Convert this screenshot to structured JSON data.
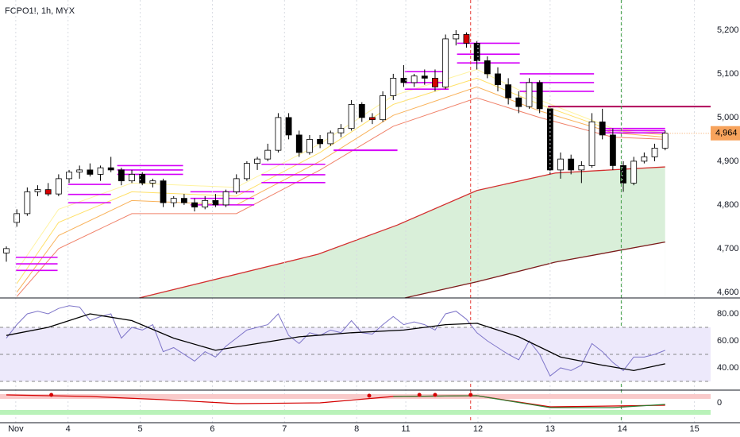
{
  "header": {
    "title": "FCPO1!, 1h, MYX"
  },
  "chart_data": {
    "type": "candlestick",
    "candles": [
      [
        4690,
        4705,
        4670,
        4700
      ],
      [
        4760,
        4790,
        4750,
        4780
      ],
      [
        4780,
        4840,
        4775,
        4830
      ],
      [
        4830,
        4845,
        4820,
        4835
      ],
      [
        4835,
        4850,
        4820,
        4825
      ],
      [
        4825,
        4870,
        4820,
        4860
      ],
      [
        4860,
        4880,
        4850,
        4875
      ],
      [
        4875,
        4890,
        4860,
        4880
      ],
      [
        4880,
        4895,
        4865,
        4870
      ],
      [
        4870,
        4890,
        4855,
        4885
      ],
      [
        4885,
        4910,
        4875,
        4880
      ],
      [
        4880,
        4885,
        4845,
        4855
      ],
      [
        4855,
        4880,
        4850,
        4870
      ],
      [
        4870,
        4875,
        4845,
        4850
      ],
      [
        4850,
        4860,
        4840,
        4855
      ],
      [
        4855,
        4860,
        4795,
        4805
      ],
      [
        4805,
        4820,
        4795,
        4815
      ],
      [
        4815,
        4825,
        4800,
        4805
      ],
      [
        4805,
        4815,
        4785,
        4795
      ],
      [
        4795,
        4820,
        4790,
        4810
      ],
      [
        4810,
        4825,
        4795,
        4800
      ],
      [
        4800,
        4835,
        4795,
        4830
      ],
      [
        4830,
        4870,
        4825,
        4860
      ],
      [
        4860,
        4900,
        4855,
        4895
      ],
      [
        4895,
        4910,
        4880,
        4905
      ],
      [
        4905,
        4940,
        4900,
        4925
      ],
      [
        4925,
        5010,
        4920,
        5000
      ],
      [
        5000,
        5010,
        4950,
        4960
      ],
      [
        4960,
        4970,
        4910,
        4920
      ],
      [
        4920,
        4960,
        4915,
        4950
      ],
      [
        4950,
        4960,
        4930,
        4940
      ],
      [
        4940,
        4970,
        4935,
        4965
      ],
      [
        4965,
        4985,
        4955,
        4975
      ],
      [
        4975,
        5040,
        4970,
        5030
      ],
      [
        5030,
        5035,
        4990,
        5000
      ],
      [
        5000,
        5010,
        4985,
        4995
      ],
      [
        4995,
        5060,
        4990,
        5050
      ],
      [
        5050,
        5100,
        5040,
        5090
      ],
      [
        5090,
        5120,
        5070,
        5080
      ],
      [
        5080,
        5100,
        5070,
        5095
      ],
      [
        5095,
        5110,
        5075,
        5090
      ],
      [
        5090,
        5110,
        5060,
        5070
      ],
      [
        5070,
        5190,
        5065,
        5180
      ],
      [
        5180,
        5200,
        5165,
        5190
      ],
      [
        5190,
        5195,
        5160,
        5170
      ],
      [
        5170,
        5175,
        5110,
        5130
      ],
      [
        5130,
        5140,
        5090,
        5100
      ],
      [
        5100,
        5115,
        5060,
        5075
      ],
      [
        5075,
        5090,
        5030,
        5045
      ],
      [
        5045,
        5060,
        5010,
        5025
      ],
      [
        5025,
        5090,
        5020,
        5080
      ],
      [
        5080,
        5085,
        5010,
        5020
      ],
      [
        5020,
        5025,
        4870,
        4880
      ],
      [
        4880,
        4920,
        4860,
        4905
      ],
      [
        4905,
        4915,
        4870,
        4880
      ],
      [
        4880,
        4900,
        4850,
        4890
      ],
      [
        4890,
        5010,
        4885,
        4990
      ],
      [
        4990,
        5020,
        4950,
        4960
      ],
      [
        4960,
        4975,
        4880,
        4890
      ],
      [
        4890,
        4900,
        4830,
        4850
      ],
      [
        4850,
        4910,
        4845,
        4900
      ],
      [
        4900,
        4920,
        4895,
        4910
      ],
      [
        4910,
        4940,
        4900,
        4930
      ],
      [
        4930,
        4970,
        4925,
        4964
      ]
    ],
    "up_color": "#ffffff",
    "down_color": "#000000",
    "signal_color": "#d50000",
    "signal_candles": [
      4,
      35,
      41,
      44
    ],
    "xticks": [
      {
        "value": 0.9,
        "label": "Nov"
      },
      {
        "value": 5.9,
        "label": "4"
      },
      {
        "value": 12.8,
        "label": "5"
      },
      {
        "value": 19.7,
        "label": "6"
      },
      {
        "value": 26.6,
        "label": "7"
      },
      {
        "value": 33.5,
        "label": "8"
      },
      {
        "value": 38.2,
        "label": "11"
      },
      {
        "value": 45.1,
        "label": "12"
      },
      {
        "value": 52.0,
        "label": "13"
      },
      {
        "value": 58.9,
        "label": "14"
      },
      {
        "value": 65.8,
        "label": "15"
      }
    ],
    "ylim": [
      4587,
      5269
    ],
    "yticks": [
      {
        "value": 5200,
        "label": "5,200"
      },
      {
        "value": 5100,
        "label": "5,100"
      },
      {
        "value": 5000,
        "label": "5,000"
      },
      {
        "value": 4900,
        "label": "4,900"
      },
      {
        "value": 4800,
        "label": "4,800"
      },
      {
        "value": 4700,
        "label": "4,700"
      },
      {
        "value": 4600,
        "label": "4,600"
      }
    ],
    "last_price": {
      "value": 4964,
      "label": "4,964",
      "color": "#f7a35c"
    },
    "ribbon": {
      "x": [
        1,
        5,
        12,
        22,
        30,
        37,
        45,
        51,
        58,
        63
      ],
      "series": [
        {
          "color": "#fff3a0",
          "values": [
            4650,
            4790,
            4850,
            4840,
            4940,
            5050,
            5110,
            5040,
            4975,
            4965
          ]
        },
        {
          "color": "#ffe066",
          "values": [
            4620,
            4760,
            4830,
            4820,
            4920,
            5030,
            5090,
            5030,
            4970,
            4960
          ]
        },
        {
          "color": "#f9b25a",
          "values": [
            4600,
            4730,
            4810,
            4800,
            4900,
            5005,
            5070,
            5015,
            4965,
            4955
          ]
        },
        {
          "color": "#f0826a",
          "values": [
            4590,
            4700,
            4780,
            4780,
            4880,
            4980,
            5045,
            5000,
            4955,
            4950
          ]
        }
      ]
    },
    "sma": [
      {
        "color": "#d32f2f",
        "fill": "#d9efd9",
        "x": [
          12.7,
          29.8,
          37.4,
          45,
          52.5,
          63
        ],
        "values": [
          4587,
          4687,
          4754,
          4833,
          4873,
          4887
        ]
      },
      {
        "color": "#7b1a1a",
        "fill": "#ffffff",
        "x": [
          38.1,
          45,
          52.5,
          63
        ],
        "values": [
          4587,
          4624,
          4669,
          4715
        ]
      }
    ],
    "levels": [
      {
        "start": 0.9,
        "end": 4.9,
        "values": [
          4680,
          4665,
          4650
        ],
        "color": "#d500f9"
      },
      {
        "start": 5.9,
        "end": 10,
        "values": [
          4847,
          4824,
          4805
        ],
        "color": "#d500f9"
      },
      {
        "start": 10.6,
        "end": 16.9,
        "values": [
          4890,
          4880,
          4870
        ],
        "color": "#d500f9"
      },
      {
        "start": 17.6,
        "end": 23.7,
        "values": [
          4830,
          4815,
          4800
        ],
        "color": "#d500f9"
      },
      {
        "start": 24.4,
        "end": 30.5,
        "values": [
          4893,
          4869,
          4851
        ],
        "color": "#d500f9"
      },
      {
        "start": 31.3,
        "end": 37.4,
        "values": [
          4925
        ],
        "color": "#d500f9"
      },
      {
        "start": 38.1,
        "end": 42.3,
        "values": [
          5105,
          5080,
          5065
        ],
        "color": "#d500f9"
      },
      {
        "start": 43.1,
        "end": 49.1,
        "values": [
          5170,
          5145,
          5125
        ],
        "color": "#d500f9"
      },
      {
        "start": 49.1,
        "end": 56.2,
        "values": [
          5100,
          5080,
          5060
        ],
        "color": "#d500f9"
      },
      {
        "start": 51.8,
        "end": 67.4,
        "values": [
          5025
        ],
        "color": "#b0005a"
      },
      {
        "start": 56.7,
        "end": 63,
        "values": [
          4975,
          4970,
          4965
        ],
        "color": "#d500f9"
      }
    ],
    "vlines": [
      {
        "x": 44.4,
        "color": "#e53935"
      },
      {
        "x": 58.8,
        "color": "#43a047"
      }
    ]
  },
  "rsi": {
    "ylim": [
      24.1,
      90
    ],
    "yticks": [
      {
        "value": 80,
        "label": "80.00"
      },
      {
        "value": 60,
        "label": "60.00"
      },
      {
        "value": 40,
        "label": "40.00"
      }
    ],
    "band": [
      30,
      70
    ],
    "mid": 50,
    "color": "#7e75c9",
    "band_color": "#ede9fb",
    "values": [
      62,
      72,
      80,
      82,
      80,
      84,
      86,
      85,
      75,
      78,
      80,
      62,
      70,
      68,
      72,
      52,
      55,
      50,
      45,
      52,
      48,
      56,
      62,
      68,
      70,
      72,
      80,
      64,
      58,
      66,
      64,
      68,
      66,
      75,
      66,
      65,
      72,
      78,
      72,
      74,
      72,
      68,
      80,
      82,
      76,
      66,
      60,
      55,
      50,
      46,
      60,
      50,
      34,
      40,
      38,
      42,
      58,
      52,
      44,
      38,
      48,
      48,
      50,
      53
    ],
    "ma": {
      "color": "#000000",
      "x": [
        0,
        4,
        8,
        12,
        16,
        20,
        24,
        28,
        33,
        38,
        42,
        45,
        49,
        53,
        57,
        60,
        63
      ],
      "values": [
        64,
        70,
        80,
        75,
        62,
        53,
        58,
        63,
        66,
        68,
        72,
        73,
        63,
        48,
        42,
        38,
        43
      ]
    }
  },
  "oscillator": {
    "ylim": [
      -25,
      15
    ],
    "yticks": [
      0
    ],
    "bands": [
      {
        "range": [
          5,
          11
        ],
        "color": "#f9caca"
      },
      {
        "range": [
          -15,
          -9
        ],
        "color": "#b9f2b9"
      }
    ],
    "lines": [
      {
        "color": "#d50000",
        "x": [
          0,
          8,
          15,
          22,
          30,
          37,
          45,
          52,
          58,
          63
        ],
        "values": [
          10,
          8,
          4,
          -1,
          0,
          8,
          9,
          -5,
          -4,
          -3
        ]
      },
      {
        "color": "#2e7d32",
        "x": [
          37,
          45,
          52,
          58,
          63
        ],
        "values": [
          8,
          9,
          -6,
          -6,
          -2
        ]
      }
    ],
    "dots": {
      "color": "#d50000",
      "x": [
        4.3,
        34.7,
        39.5,
        41,
        44.4
      ],
      "values": [
        10,
        9,
        10,
        10,
        10
      ]
    }
  }
}
